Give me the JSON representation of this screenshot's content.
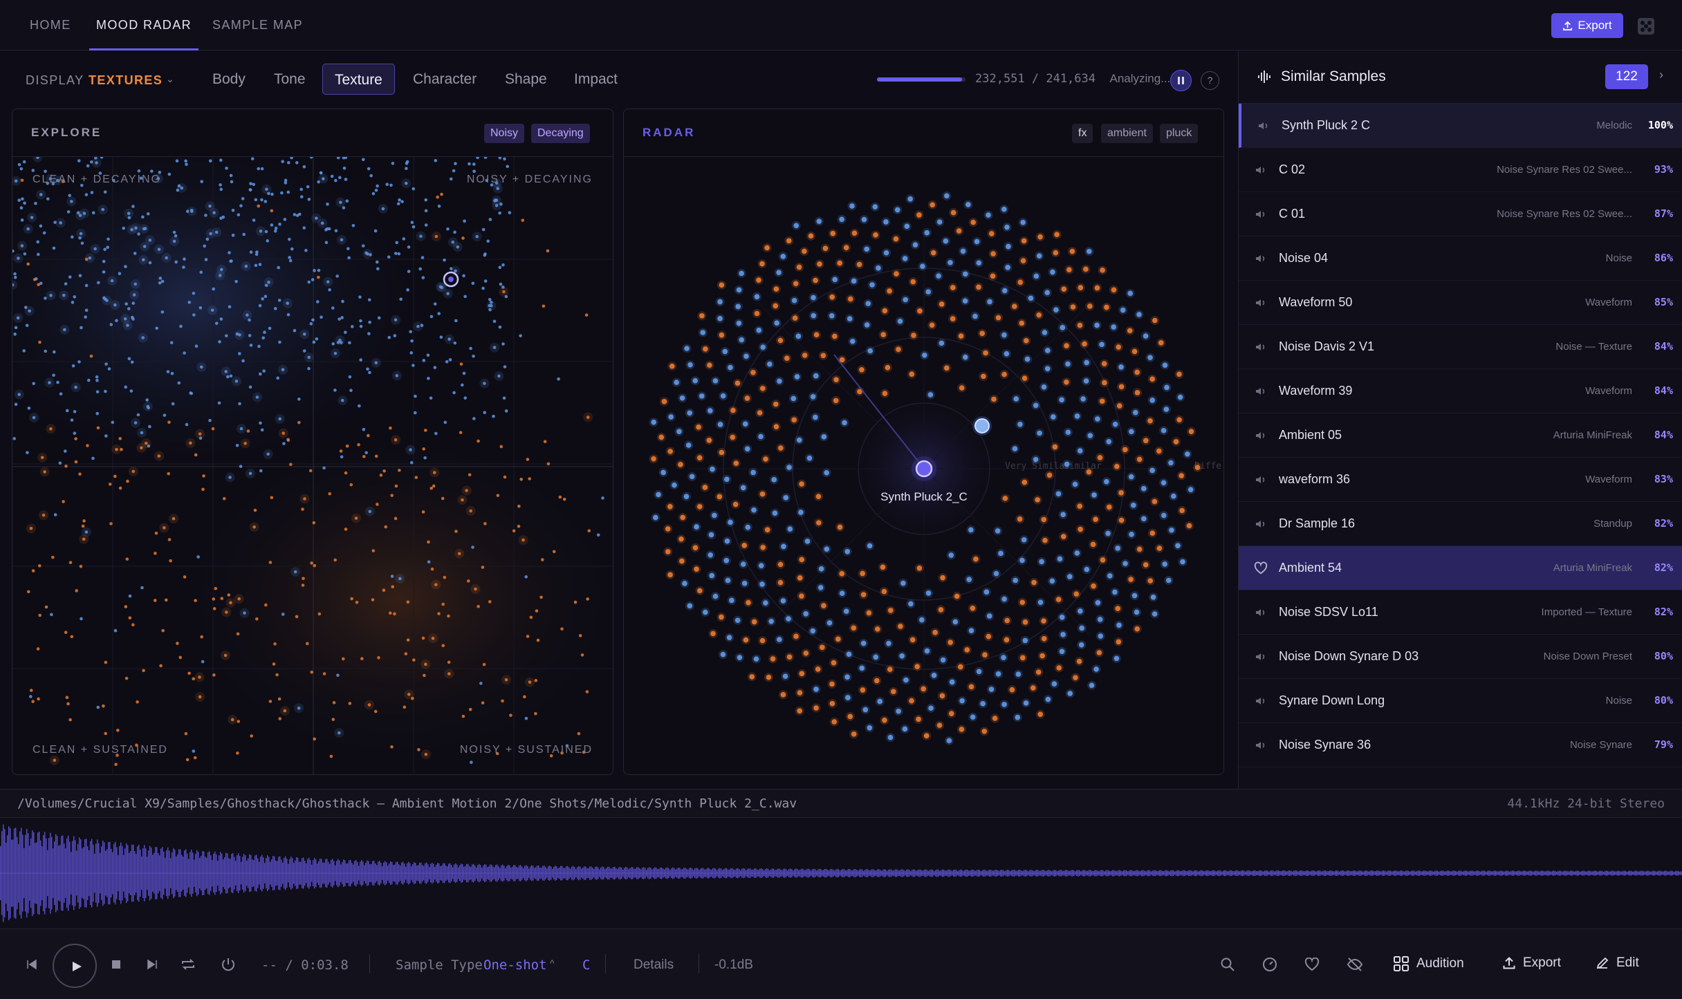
{
  "nav": {
    "tabs": [
      {
        "label": "HOME"
      },
      {
        "label": "MOOD RADAR"
      },
      {
        "label": "SAMPLE MAP"
      }
    ],
    "export_label": "Export"
  },
  "filter": {
    "display_label": "DISPLAY",
    "display_value": "TEXTURES",
    "tabs": [
      "Body",
      "Tone",
      "Texture",
      "Character",
      "Shape",
      "Impact"
    ],
    "active_tab": "Texture"
  },
  "analysis": {
    "progress_text": "232,551 / 241,634",
    "status": "Analyzing...",
    "progress": 0.962,
    "help": "?"
  },
  "explore": {
    "title": "EXPLORE",
    "tags": [
      "Noisy",
      "Decaying"
    ],
    "corners": {
      "top_left": "CLEAN + DECAYING",
      "top_right": "NOISY + DECAYING",
      "bottom_left": "CLEAN + SUSTAINED",
      "bottom_right": "NOISY + SUSTAINED"
    }
  },
  "radar": {
    "title": "RADAR",
    "tags": [
      "fx",
      "ambient",
      "pluck"
    ],
    "center_label": "Synth Pluck 2_C",
    "ring_labels": [
      "Very Similar",
      "Similar",
      "Diffe"
    ]
  },
  "similar": {
    "title": "Similar Samples",
    "count": "122",
    "items": [
      {
        "name": "Synth Pluck 2 C",
        "category": "Melodic",
        "pct": "100%"
      },
      {
        "name": "C 02",
        "category": "Noise Synare Res 02 Swee...",
        "pct": "93%"
      },
      {
        "name": "C 01",
        "category": "Noise Synare Res 02 Swee...",
        "pct": "87%"
      },
      {
        "name": "Noise 04",
        "category": "Noise",
        "pct": "86%"
      },
      {
        "name": "Waveform 50",
        "category": "Waveform",
        "pct": "85%"
      },
      {
        "name": "Noise Davis 2 V1",
        "category": "Noise — Texture",
        "pct": "84%"
      },
      {
        "name": "Waveform 39",
        "category": "Waveform",
        "pct": "84%"
      },
      {
        "name": "Ambient 05",
        "category": "Arturia MiniFreak",
        "pct": "84%"
      },
      {
        "name": "waveform 36",
        "category": "Waveform",
        "pct": "83%"
      },
      {
        "name": "Dr Sample 16",
        "category": "Standup",
        "pct": "82%"
      },
      {
        "name": "Ambient 54",
        "category": "Arturia MiniFreak",
        "pct": "82%"
      },
      {
        "name": "Noise SDSV Lo11",
        "category": "Imported — Texture",
        "pct": "82%"
      },
      {
        "name": "Noise Down Synare D 03",
        "category": "Noise Down Preset",
        "pct": "80%"
      },
      {
        "name": "Synare Down Long",
        "category": "Noise",
        "pct": "80%"
      },
      {
        "name": "Noise Synare 36",
        "category": "Noise Synare",
        "pct": "79%"
      }
    ]
  },
  "file": {
    "path": "/Volumes/Crucial X9/Samples/Ghosthack/Ghosthack – Ambient Motion 2/One Shots/Melodic/Synth Pluck 2_C.wav",
    "format": "44.1kHz 24-bit Stereo"
  },
  "transport": {
    "time": "-- / 0:03.8",
    "sample_type_label": "Sample Type",
    "sample_type_value": "One-shot",
    "key": "C",
    "details": "Details",
    "gain": "-0.1dB",
    "audition": "Audition",
    "export": "Export",
    "edit": "Edit"
  },
  "colors": {
    "accent": "#5a4de6",
    "blue_dot": "#5b8fd8",
    "orange_dot": "#d9722e",
    "bg": "#0e0d17"
  }
}
